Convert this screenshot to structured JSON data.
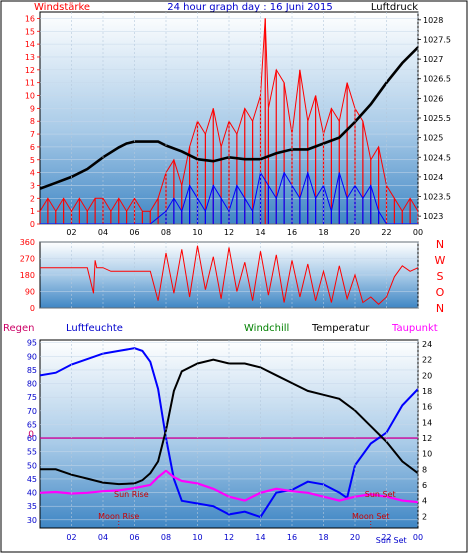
{
  "chart_data": [
    {
      "type": "line",
      "panel": "wind-pressure",
      "title": "24 hour graph day : 16 Juni 2015",
      "left_label": "Windstärke",
      "right_label": "Luftdruck",
      "x_tick_labels": [
        "02",
        "04",
        "06",
        "08",
        "10",
        "12",
        "14",
        "16",
        "18",
        "20",
        "22",
        "00"
      ],
      "left_ticks": [
        0,
        1,
        2,
        3,
        4,
        5,
        6,
        7,
        8,
        9,
        10,
        11,
        12,
        13,
        14,
        15,
        16
      ],
      "right_ticks": [
        1023,
        1023.5,
        1024,
        1024.5,
        1025,
        1025.5,
        1026,
        1026.5,
        1027,
        1027.5,
        1028
      ],
      "ylim_left": [
        0,
        16.5
      ],
      "ylim_right": [
        1022.8,
        1028.2
      ],
      "series": [
        {
          "name": "pressure",
          "axis": "right",
          "color": "#000000",
          "x": [
            0,
            1,
            2,
            3,
            4,
            5,
            5.5,
            6,
            7,
            7.5,
            8,
            9,
            10,
            11,
            12,
            13,
            14,
            15,
            16,
            17,
            18,
            19,
            20,
            21,
            22,
            23,
            24
          ],
          "y": [
            1023.7,
            1023.85,
            1024.0,
            1024.2,
            1024.5,
            1024.75,
            1024.85,
            1024.9,
            1024.9,
            1024.9,
            1024.8,
            1024.65,
            1024.45,
            1024.4,
            1024.5,
            1024.45,
            1024.45,
            1024.6,
            1024.7,
            1024.7,
            1024.85,
            1025.0,
            1025.4,
            1025.85,
            1026.4,
            1026.9,
            1027.3
          ]
        },
        {
          "name": "gust",
          "axis": "left",
          "color": "#ff0000",
          "x": [
            0,
            0.5,
            1,
            1.5,
            2,
            2.5,
            3,
            3.5,
            4,
            4.5,
            5,
            5.5,
            6,
            6.5,
            7,
            7.5,
            8,
            8.5,
            9,
            9.5,
            10,
            10.5,
            11,
            11.5,
            12,
            12.5,
            13,
            13.5,
            14,
            14.3,
            14.5,
            15,
            15.5,
            16,
            16.5,
            17,
            17.5,
            18,
            18.5,
            19,
            19.5,
            20,
            20.5,
            21,
            21.5,
            22,
            22.5,
            23,
            23.5,
            24
          ],
          "y": [
            1,
            2,
            1,
            2,
            1,
            2,
            1,
            2,
            2,
            1,
            2,
            1,
            2,
            1,
            1,
            2,
            4,
            5,
            3,
            6,
            8,
            7,
            9,
            6,
            8,
            7,
            9,
            8,
            10,
            16,
            9,
            12,
            11,
            7,
            12,
            8,
            10,
            7,
            9,
            8,
            11,
            9,
            8,
            5,
            6,
            3,
            2,
            1,
            2,
            1
          ]
        },
        {
          "name": "wind",
          "axis": "left",
          "color": "#0000ff",
          "x": [
            0,
            1,
            2,
            3,
            4,
            5,
            6,
            7,
            8,
            8.5,
            9,
            9.5,
            10,
            10.5,
            11,
            11.5,
            12,
            12.5,
            13,
            13.5,
            14,
            14.5,
            15,
            15.5,
            16,
            16.5,
            17,
            17.5,
            18,
            18.5,
            19,
            19.5,
            20,
            20.5,
            21,
            21.5,
            22,
            23,
            24
          ],
          "y": [
            0,
            0,
            0,
            0,
            0,
            0,
            0,
            0,
            1,
            2,
            1,
            3,
            2,
            1,
            3,
            2,
            1,
            3,
            2,
            1,
            4,
            3,
            2,
            4,
            3,
            2,
            4,
            2,
            3,
            1,
            4,
            2,
            3,
            2,
            3,
            1,
            0,
            0,
            0
          ]
        }
      ]
    },
    {
      "type": "line",
      "panel": "wind-direction",
      "x_tick_labels": [],
      "left_ticks": [
        0,
        90,
        180,
        270,
        360
      ],
      "right_labels": [
        "N",
        "W",
        "S",
        "O",
        "N"
      ],
      "ylim": [
        0,
        360
      ],
      "series": [
        {
          "name": "direction",
          "color": "#ff0000",
          "x": [
            0,
            1,
            2,
            3,
            3.4,
            3.5,
            3.6,
            4,
            4.5,
            5,
            5.5,
            6,
            6.5,
            7,
            7.5,
            8,
            8.5,
            9,
            9.5,
            10,
            10.5,
            11,
            11.5,
            12,
            12.5,
            13,
            13.5,
            14,
            14.5,
            15,
            15.5,
            16,
            16.5,
            17,
            17.5,
            18,
            18.5,
            19,
            19.5,
            20,
            20.5,
            21,
            21.5,
            22,
            22.5,
            23,
            23.5,
            24
          ],
          "y": [
            220,
            220,
            220,
            220,
            80,
            260,
            220,
            220,
            200,
            200,
            200,
            200,
            200,
            200,
            40,
            300,
            80,
            320,
            60,
            340,
            100,
            280,
            50,
            330,
            90,
            250,
            40,
            310,
            70,
            290,
            30,
            260,
            60,
            240,
            40,
            200,
            30,
            230,
            50,
            180,
            30,
            60,
            20,
            60,
            170,
            230,
            200,
            220
          ]
        }
      ]
    },
    {
      "type": "line",
      "panel": "temperature-humidity",
      "labels": {
        "rain": "Regen",
        "humidity": "Luftfeuchte",
        "windchill": "Windchill",
        "temperature": "Temperatur",
        "dewpoint": "Taupunkt"
      },
      "x_tick_labels": [
        "02",
        "04",
        "06",
        "08",
        "10",
        "12",
        "14",
        "16",
        "18",
        "20",
        "22",
        "00"
      ],
      "left_ticks": [
        30,
        35,
        40,
        45,
        50,
        55,
        60,
        65,
        70,
        75,
        80,
        85,
        90,
        95
      ],
      "right_ticks": [
        2,
        4,
        6,
        8,
        10,
        12,
        14,
        16,
        18,
        20,
        22,
        24
      ],
      "rain_label": "0",
      "ylim_left": [
        27,
        96
      ],
      "ylim_right": [
        0.5,
        24.5
      ],
      "annotations": [
        "Sun Rise",
        "Moon Rise",
        "Sun Set",
        "Moon Set",
        "Sun Set"
      ],
      "series": [
        {
          "name": "humidity",
          "axis": "left",
          "color": "#0000ff",
          "x": [
            0,
            1,
            2,
            3,
            4,
            5,
            6,
            6.5,
            7,
            7.5,
            8,
            8.5,
            9,
            10,
            11,
            12,
            13,
            14,
            15,
            16,
            17,
            18,
            19,
            19.5,
            20,
            21,
            22,
            23,
            24
          ],
          "y": [
            83,
            84,
            87,
            89,
            91,
            92,
            93,
            92,
            88,
            78,
            60,
            45,
            37,
            36,
            35,
            32,
            33,
            31,
            40,
            41,
            44,
            43,
            40,
            38,
            50,
            58,
            62,
            72,
            78
          ]
        },
        {
          "name": "temperature",
          "axis": "right",
          "color": "#000000",
          "x": [
            0,
            1,
            2,
            3,
            4,
            5,
            6,
            6.5,
            7,
            7.5,
            8,
            8.5,
            9,
            10,
            11,
            12,
            13,
            14,
            15,
            16,
            17,
            18,
            19,
            20,
            21,
            22,
            23,
            24
          ],
          "y": [
            8.0,
            8.0,
            7.3,
            6.8,
            6.3,
            6.1,
            6.2,
            6.6,
            7.5,
            9.0,
            13.0,
            18.0,
            20.5,
            21.5,
            22.0,
            21.5,
            21.5,
            21.0,
            20.0,
            19.0,
            18.0,
            17.5,
            17.0,
            15.5,
            13.5,
            11.5,
            9.0,
            7.5
          ]
        },
        {
          "name": "dewpoint",
          "axis": "right",
          "color": "#ff00ff",
          "x": [
            0,
            1,
            2,
            3,
            4,
            5,
            6,
            7,
            7.5,
            8,
            8.5,
            9,
            10,
            11,
            12,
            13,
            14,
            15,
            16,
            17,
            18,
            19,
            20,
            21,
            22,
            23,
            24
          ],
          "y": [
            5.0,
            5.1,
            4.9,
            5.0,
            5.2,
            5.3,
            5.6,
            6.0,
            7.0,
            7.8,
            7.0,
            6.5,
            6.2,
            5.5,
            4.5,
            4.0,
            5.0,
            5.5,
            5.2,
            5.0,
            4.5,
            4.0,
            4.5,
            4.8,
            4.5,
            4.0,
            3.8
          ]
        },
        {
          "name": "rain",
          "axis": "left",
          "color": "#cc0099",
          "x": [
            0,
            24
          ],
          "y": [
            60,
            60
          ]
        }
      ]
    }
  ],
  "colors": {
    "pink_axis": "#cc0066",
    "blue_axis": "#0000cc",
    "plot_top": "#ffffff",
    "plot_bottom": "#4a90c8"
  }
}
